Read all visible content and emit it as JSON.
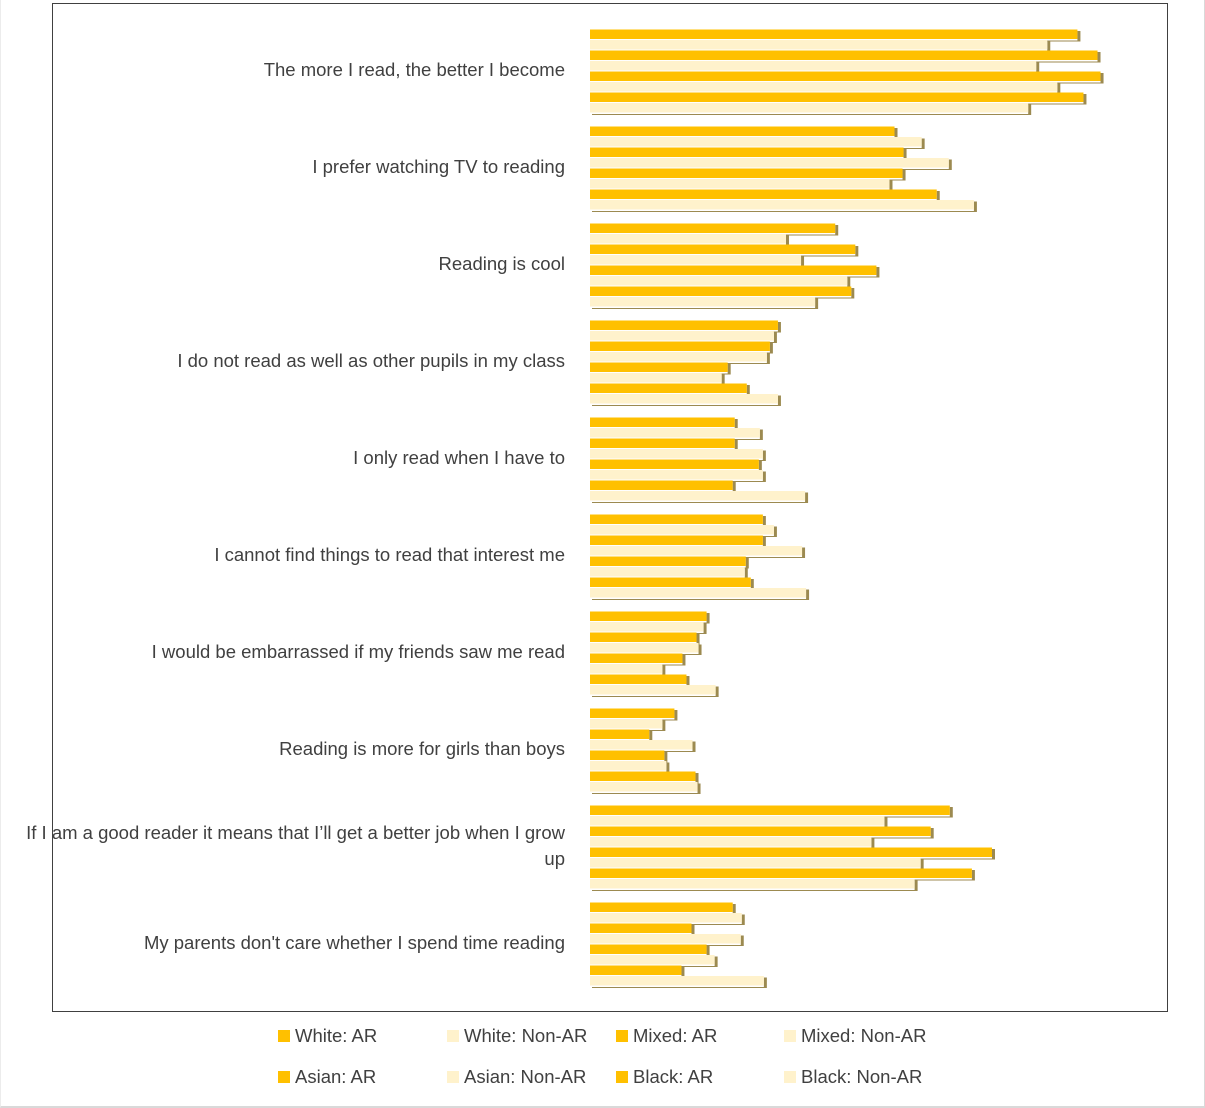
{
  "chart_data": {
    "type": "bar",
    "orientation": "horizontal",
    "categories": [
      "The more I read, the better I become",
      "I prefer watching TV to reading",
      "Reading is cool",
      "I do not read as well as other pupils in my class",
      "I only read when I have to",
      "I cannot find things to read that interest me",
      "I would be embarrassed if my friends saw me read",
      "Reading is more for girls than boys",
      "If I am a good reader it means that I’ll get a better job when I grow up",
      "My parents don't care whether I spend time reading"
    ],
    "series": [
      {
        "name": "White: AR",
        "color": "#FFC000",
        "values": [
          48.5,
          30.3,
          24.4,
          18.7,
          14.4,
          17.2,
          11.6,
          8.4,
          35.8,
          14.2
        ]
      },
      {
        "name": "White: Non-AR",
        "color": "#FFF2CC",
        "values": [
          45.5,
          33.0,
          19.5,
          18.3,
          16.9,
          18.3,
          11.3,
          7.2,
          29.3,
          15.1
        ]
      },
      {
        "name": "Mixed: AR",
        "color": "#FFC000",
        "values": [
          50.5,
          31.2,
          26.4,
          17.9,
          14.4,
          17.2,
          10.6,
          5.9,
          33.9,
          10.1
        ]
      },
      {
        "name": "Mixed: Non-AR",
        "color": "#FFF2CC",
        "values": [
          44.4,
          35.7,
          21.0,
          17.6,
          17.2,
          21.1,
          10.8,
          10.2,
          28.0,
          15.0
        ]
      },
      {
        "name": "Asian: AR",
        "color": "#FFC000",
        "values": [
          50.8,
          31.1,
          28.5,
          13.7,
          16.8,
          15.5,
          9.2,
          7.4,
          40.0,
          11.6
        ]
      },
      {
        "name": "Asian: Non-AR",
        "color": "#FFF2CC",
        "values": [
          46.5,
          29.8,
          25.6,
          13.1,
          17.2,
          15.4,
          7.2,
          7.6,
          32.9,
          12.4
        ]
      },
      {
        "name": "Black: AR",
        "color": "#FFC000",
        "values": [
          49.1,
          34.5,
          26.0,
          15.6,
          14.2,
          16.0,
          9.6,
          10.5,
          38.0,
          9.1
        ]
      },
      {
        "name": "Black: Non-AR",
        "color": "#FFF2CC",
        "values": [
          43.6,
          38.2,
          22.4,
          18.7,
          21.4,
          21.5,
          12.5,
          10.7,
          32.3,
          17.3
        ]
      }
    ],
    "xlim": [
      0,
      55
    ],
    "grid": false,
    "legend": "bottom"
  }
}
